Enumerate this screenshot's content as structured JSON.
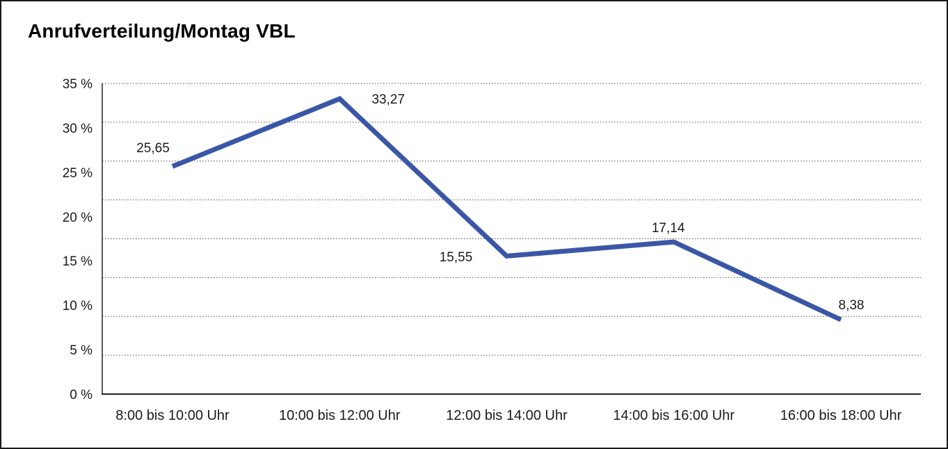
{
  "window": {
    "background_color": "#ffffff",
    "frame_border_color": "#1a1a1a"
  },
  "chart_data": {
    "type": "line",
    "title": "Anrufverteilung/Montag VBL",
    "categories": [
      "8:00 bis 10:00 Uhr",
      "10:00 bis 12:00 Uhr",
      "12:00 bis 14:00 Uhr",
      "14:00 bis 16:00 Uhr",
      "16:00 bis 18:00 Uhr"
    ],
    "values": [
      25.65,
      33.27,
      15.55,
      17.14,
      8.38
    ],
    "value_labels": [
      "25,65",
      "33,27",
      "15,55",
      "17,14",
      "8,38"
    ],
    "y_tick_labels": [
      "35 %",
      "30 %",
      "25 %",
      "20 %",
      "15 %",
      "10 %",
      "5 %",
      "0 %"
    ],
    "ylim": [
      0,
      35
    ],
    "xlabel": "",
    "ylabel": "",
    "legend": "none",
    "grid": "horizontal-dotted",
    "gridline_count": 9,
    "line_color": "#3A57A7",
    "grid_color": "#4a4a4a",
    "axis_color": "#222222",
    "text_color": "#1a1a1a"
  }
}
